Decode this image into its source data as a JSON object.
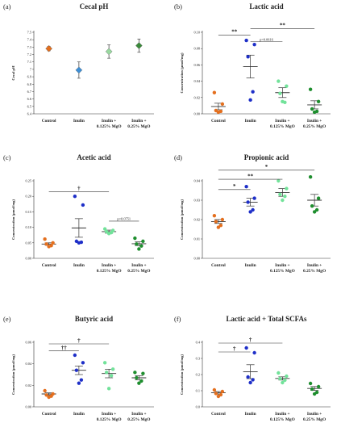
{
  "chart_data": [
    {
      "letter": "(a)",
      "title": "Cecal pH",
      "type": "scatter",
      "ylabel": "Cecal pH",
      "ylim": [
        6.4,
        7.5
      ],
      "yticks": [
        "6.4",
        "6.5",
        "6.6",
        "6.7",
        "6.8",
        "6.9",
        "7",
        "7.1",
        "7.2",
        "7.3",
        "7.4",
        "7.5"
      ],
      "categories": [
        "Control",
        "Inulin",
        "Inulin +\n0.125% MgO",
        "Inulin +\n0.25% MgO"
      ],
      "style": "diamond",
      "colors": [
        "#E46F1E",
        "#3D8FD6",
        "#99D9A0",
        "#3A8A3A"
      ],
      "points": [
        [],
        [],
        [],
        []
      ],
      "means": [
        7.28,
        6.99,
        7.24,
        7.32
      ],
      "errors": [
        0.03,
        0.11,
        0.09,
        0.09
      ],
      "sigs": []
    },
    {
      "letter": "(b)",
      "title": "Lactic acid",
      "type": "scatter",
      "ylabel": "Concentration (μmol/mg)",
      "ylim": [
        0,
        0.1
      ],
      "yticks": [
        "0.00",
        "0.02",
        "0.04",
        "0.06",
        "0.08",
        "0.10"
      ],
      "categories": [
        "Control",
        "Inulin",
        "Inulin +\n0.125% MgO",
        "Inulin +\n0.25% MgO"
      ],
      "style": "points",
      "colors": [
        "#E46F1E",
        "#1E2FC8",
        "#72E29A",
        "#1E8E2E"
      ],
      "points": [
        [
          0.026,
          0.012,
          0.004,
          0.003,
          0.002
        ],
        [
          0.09,
          0.085,
          0.07,
          0.027,
          0.017
        ],
        [
          0.04,
          0.034,
          0.025,
          0.014,
          0.015
        ],
        [
          0.03,
          0.015,
          0.006,
          0.003,
          0.002
        ]
      ],
      "means": [
        0.009,
        0.058,
        0.026,
        0.011
      ],
      "errors": [
        0.004,
        0.014,
        0.006,
        0.005
      ],
      "sigs": [
        {
          "from": 0,
          "to": 1,
          "y": 0.0965,
          "label": "**",
          "size": "big"
        },
        {
          "from": 1,
          "to": 2,
          "y": 0.0885,
          "label": "p=0.0616",
          "size": "small"
        },
        {
          "from": 1,
          "to": 3,
          "y": 0.1045,
          "label": "**",
          "size": "big"
        }
      ]
    },
    {
      "letter": "(c)",
      "title": "Acetic acid",
      "type": "scatter",
      "ylabel": "Concentration (μmol/mg)",
      "ylim": [
        0,
        0.25
      ],
      "yticks": [
        "0.00",
        "0.05",
        "0.10",
        "0.15",
        "0.20",
        "0.25"
      ],
      "categories": [
        "Control",
        "Inulin",
        "Inulin +\n0.125% MgO",
        "Inulin +\n0.25% MgO"
      ],
      "style": "points",
      "colors": [
        "#E46F1E",
        "#1E2FC8",
        "#72E29A",
        "#1E8E2E"
      ],
      "points": [
        [
          0.062,
          0.05,
          0.046,
          0.041,
          0.038
        ],
        [
          0.2,
          0.172,
          0.055,
          0.052,
          0.05
        ],
        [
          0.095,
          0.09,
          0.086,
          0.083,
          0.08
        ],
        [
          0.065,
          0.055,
          0.046,
          0.04,
          0.03
        ]
      ],
      "means": [
        0.046,
        0.098,
        0.086,
        0.047
      ],
      "errors": [
        0.004,
        0.03,
        0.005,
        0.006
      ],
      "sigs": [
        {
          "from": 0,
          "to": 2,
          "y": 0.215,
          "label": "†",
          "size": "big"
        },
        {
          "from": 2,
          "to": 3,
          "y": 0.12,
          "label": "p=0.0751",
          "size": "small"
        }
      ]
    },
    {
      "letter": "(d)",
      "title": "Propionic acid",
      "type": "scatter",
      "ylabel": "Concentration (μmol/mg)",
      "ylim": [
        0,
        0.04
      ],
      "yticks": [
        "0.00",
        "0.01",
        "0.02",
        "0.03",
        "0.04"
      ],
      "categories": [
        "Control",
        "Inulin",
        "Inulin +\n0.125% MgO",
        "Inulin +\n0.25% MgO"
      ],
      "style": "points",
      "colors": [
        "#E46F1E",
        "#1E2FC8",
        "#72E29A",
        "#1E8E2E"
      ],
      "points": [
        [
          0.022,
          0.02,
          0.019,
          0.017,
          0.016
        ],
        [
          0.037,
          0.031,
          0.029,
          0.025,
          0.024
        ],
        [
          0.04,
          0.036,
          0.033,
          0.032,
          0.03
        ],
        [
          0.042,
          0.031,
          0.027,
          0.025,
          0.024
        ]
      ],
      "means": [
        0.019,
        0.029,
        0.034,
        0.03
      ],
      "errors": [
        0.001,
        0.002,
        0.002,
        0.003
      ],
      "sigs": [
        {
          "from": 0,
          "to": 1,
          "y": 0.0355,
          "label": "*",
          "size": "big"
        },
        {
          "from": 0,
          "to": 2,
          "y": 0.0408,
          "label": "**",
          "size": "big"
        },
        {
          "from": 0,
          "to": 3,
          "y": 0.0455,
          "label": "*",
          "size": "big"
        }
      ]
    },
    {
      "letter": "(e)",
      "title": "Butyric acid",
      "type": "scatter",
      "ylabel": "Concentration (μmol/mg)",
      "ylim": [
        0,
        0.06
      ],
      "yticks": [
        "0.00",
        "0.02",
        "0.04",
        "0.06"
      ],
      "categories": [
        "Control",
        "Inulin",
        "Inulin +\n0.125% MgO",
        "Inulin +\n0.25% MgO"
      ],
      "style": "points",
      "colors": [
        "#E46F1E",
        "#1E2FC8",
        "#72E29A",
        "#1E8E2E"
      ],
      "points": [
        [
          0.015,
          0.012,
          0.011,
          0.01,
          0.009
        ],
        [
          0.048,
          0.041,
          0.034,
          0.025,
          0.022
        ],
        [
          0.041,
          0.035,
          0.032,
          0.029,
          0.017
        ],
        [
          0.032,
          0.031,
          0.027,
          0.024,
          0.022
        ]
      ],
      "means": [
        0.012,
        0.034,
        0.031,
        0.027
      ],
      "errors": [
        0.001,
        0.004,
        0.004,
        0.002
      ],
      "sigs": [
        {
          "from": 0,
          "to": 1,
          "y": 0.052,
          "label": "††",
          "size": "big"
        },
        {
          "from": 0,
          "to": 2,
          "y": 0.0585,
          "label": "†",
          "size": "big"
        }
      ]
    },
    {
      "letter": "(f)",
      "title": "Lactic acid + Total SCFAs",
      "type": "scatter",
      "ylabel": "Concentration (μmol/mg)",
      "ylim": [
        0,
        0.4
      ],
      "yticks": [
        "0.0",
        "0.1",
        "0.2",
        "0.3",
        "0.4"
      ],
      "categories": [
        "Control",
        "Inulin",
        "Inulin +\n0.125% MgO",
        "Inulin +\n0.25% MgO"
      ],
      "style": "points",
      "colors": [
        "#E46F1E",
        "#1E2FC8",
        "#72E29A",
        "#1E8E2E"
      ],
      "points": [
        [
          0.105,
          0.095,
          0.083,
          0.075,
          0.065
        ],
        [
          0.365,
          0.335,
          0.185,
          0.168,
          0.15
        ],
        [
          0.21,
          0.19,
          0.175,
          0.165,
          0.15
        ],
        [
          0.145,
          0.125,
          0.11,
          0.09,
          0.08
        ]
      ],
      "means": [
        0.087,
        0.218,
        0.176,
        0.114
      ],
      "errors": [
        0.008,
        0.043,
        0.01,
        0.012
      ],
      "sigs": [
        {
          "from": 0,
          "to": 1,
          "y": 0.34,
          "label": "†",
          "size": "big"
        },
        {
          "from": 0,
          "to": 2,
          "y": 0.395,
          "label": "†",
          "size": "big"
        }
      ]
    }
  ]
}
